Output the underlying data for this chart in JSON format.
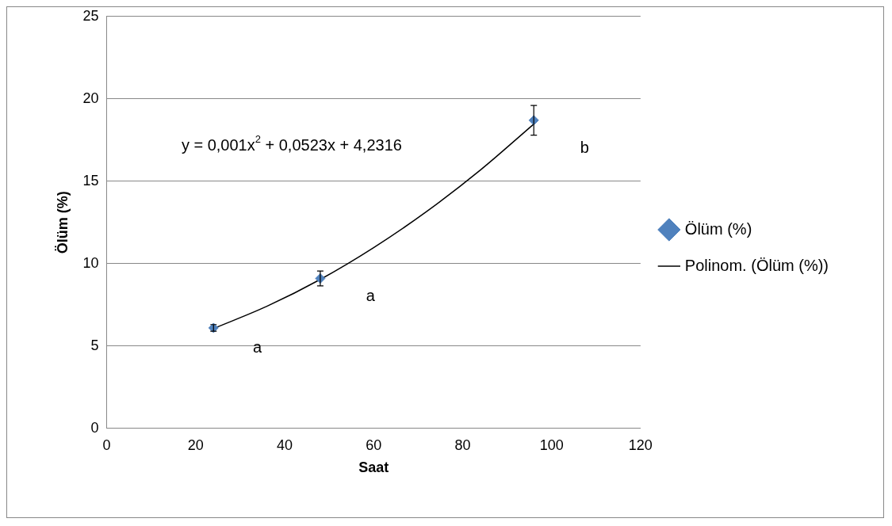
{
  "chart_data": {
    "type": "scatter",
    "xlabel": "Saat",
    "ylabel": "Ölüm (%)",
    "xlim": [
      0,
      120
    ],
    "xticks": [
      0,
      20,
      40,
      60,
      80,
      100,
      120
    ],
    "ylim": [
      0,
      25
    ],
    "yticks": [
      0,
      5,
      10,
      15,
      20,
      25
    ],
    "grid": "y",
    "legend": "right",
    "series": [
      {
        "name": "Ölüm (%)",
        "color": "#4f81bd",
        "marker": "diamond",
        "x": [
          24,
          48,
          96
        ],
        "values": [
          6.1,
          9.1,
          18.7
        ],
        "errors": [
          0.2,
          0.45,
          0.9
        ]
      },
      {
        "name": "Polinom. (Ölüm (%))",
        "type": "line",
        "color": "#000000",
        "marker": "none",
        "line_style": "solid",
        "x": [
          24,
          36,
          48,
          60,
          72,
          84,
          96
        ],
        "values": [
          6.06,
          7.41,
          9.04,
          10.97,
          13.18,
          15.68,
          18.47
        ]
      }
    ],
    "annotations": [
      {
        "text": "y = 0,001x$^{2}$ + 0,0523x + 4,2316"
      },
      "a",
      "a",
      "b"
    ]
  }
}
